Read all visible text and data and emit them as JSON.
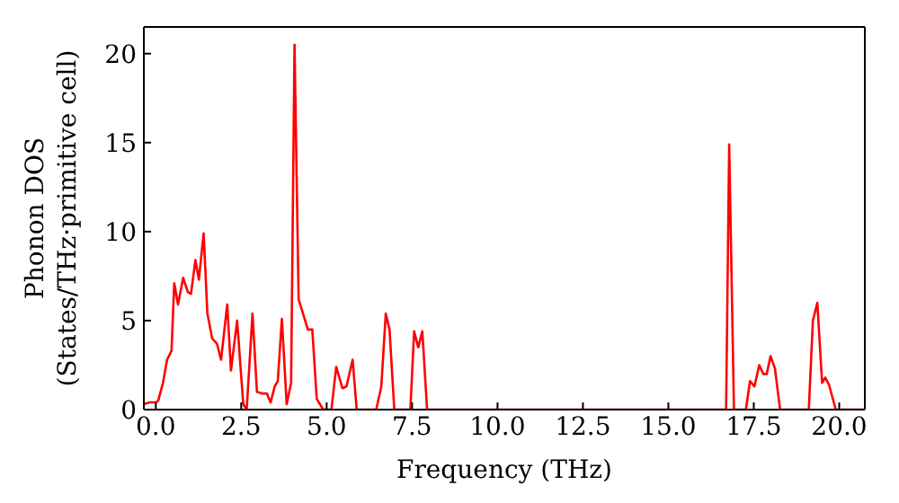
{
  "chart_data": {
    "type": "line",
    "xlabel": "Frequency (THz)",
    "ylabel": "Phonon DOS\n(States/THz·primitive cell)",
    "x": [
      -0.35,
      -0.19,
      0,
      0.07,
      0.21,
      0.33,
      0.46,
      0.54,
      0.65,
      0.8,
      0.94,
      1.03,
      1.16,
      1.26,
      1.4,
      1.51,
      1.65,
      1.79,
      1.91,
      2.09,
      2.2,
      2.38,
      2.56,
      2.66,
      2.83,
      2.96,
      3.13,
      3.25,
      3.36,
      3.48,
      3.57,
      3.69,
      3.83,
      3.96,
      4.06,
      4.18,
      4.45,
      4.58,
      4.71,
      4.9,
      5.14,
      5.28,
      5.46,
      5.58,
      5.76,
      5.88,
      6.45,
      6.6,
      6.73,
      6.84,
      6.98,
      7.45,
      7.56,
      7.68,
      7.8,
      7.94,
      16.69,
      16.78,
      16.92,
      17.27,
      17.39,
      17.52,
      17.66,
      17.78,
      17.88,
      17.99,
      18.12,
      18.27,
      19.11,
      19.23,
      19.36,
      19.5,
      19.59,
      19.7,
      19.9,
      20.75
    ],
    "series": [
      {
        "color": "#ff0000",
        "values": [
          0.3,
          0.4,
          0.4,
          0.5,
          1.5,
          2.8,
          3.3,
          7.1,
          5.9,
          7.4,
          6.6,
          6.5,
          8.4,
          7.3,
          9.9,
          5.4,
          4.0,
          3.7,
          2.8,
          5.9,
          2.2,
          5.0,
          0.3,
          0,
          5.4,
          1.0,
          0.9,
          0.9,
          0.4,
          1.3,
          1.6,
          5.1,
          0.3,
          1.5,
          20.5,
          6.2,
          4.5,
          4.5,
          0.6,
          0,
          0,
          2.4,
          1.2,
          1.3,
          2.8,
          0,
          0,
          1.3,
          5.4,
          4.5,
          0,
          0,
          4.4,
          3.5,
          4.4,
          0,
          0,
          14.9,
          0,
          0,
          1.6,
          1.3,
          2.5,
          2.0,
          2.0,
          3.0,
          2.3,
          0,
          0,
          5.0,
          6.0,
          1.5,
          1.8,
          1.4,
          0,
          0
        ]
      }
    ],
    "xlim": [
      -0.35,
      20.75
    ],
    "xticks": [
      {
        "value": 0,
        "label": "0.0"
      },
      {
        "value": 2.5,
        "label": "2.5"
      },
      {
        "value": 5,
        "label": "5.0"
      },
      {
        "value": 7.5,
        "label": "7.5"
      },
      {
        "value": 10,
        "label": "10.0"
      },
      {
        "value": 12.5,
        "label": "12.5"
      },
      {
        "value": 15,
        "label": "15.0"
      },
      {
        "value": 17.5,
        "label": "17.5"
      },
      {
        "value": 20,
        "label": "20.0"
      }
    ],
    "ylim": [
      0,
      21.5
    ],
    "yticks": [
      0,
      5,
      10,
      15,
      20
    ],
    "grid": false,
    "legend": false,
    "marker": "none",
    "line_style": "solid"
  }
}
